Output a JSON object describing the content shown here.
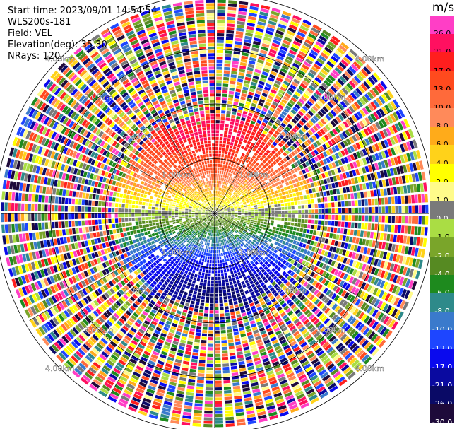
{
  "info": {
    "start_time": "Start time: 2023/09/01 14:54:54",
    "instrument": "WLS200s-181",
    "field": "Field: VEL",
    "elevation": "Elevation(deg): 35.30",
    "nrays": "NRays: 120"
  },
  "range_labels": [
    "1.00km",
    "2.00km",
    "3.00km",
    "4.00km"
  ],
  "legend": {
    "unit": "m/s",
    "entries": [
      {
        "label": "26.0",
        "color": "#ff3ec6"
      },
      {
        "label": "21.0",
        "color": "#ff1060"
      },
      {
        "label": "17.0",
        "color": "#ff1e1e"
      },
      {
        "label": "13.0",
        "color": "#ff4a1e"
      },
      {
        "label": "10.0",
        "color": "#ff6a3a"
      },
      {
        "label": "8.0",
        "color": "#ff8a5a"
      },
      {
        "label": "6.0",
        "color": "#ffab1a"
      },
      {
        "label": "4.0",
        "color": "#ffd21a"
      },
      {
        "label": "2.0",
        "color": "#ffff00"
      },
      {
        "label": "1.0",
        "color": "#fffb8a"
      },
      {
        "label": "0.0",
        "color": "#7a7a7a"
      },
      {
        "label": "-1.0",
        "color": "#aadd44"
      },
      {
        "label": "-2.0",
        "color": "#7aa52a"
      },
      {
        "label": "-4.0",
        "color": "#568a22"
      },
      {
        "label": "-6.0",
        "color": "#1e8a1e"
      },
      {
        "label": "-8.0",
        "color": "#2e8a8a"
      },
      {
        "label": "-10.0",
        "color": "#3a7acc"
      },
      {
        "label": "-13.0",
        "color": "#1e46ff"
      },
      {
        "label": "-17.0",
        "color": "#0a0aee"
      },
      {
        "label": "-21.0",
        "color": "#0a0aa0"
      },
      {
        "label": "-26.0",
        "color": "#0a0a66"
      },
      {
        "label": "-30.0",
        "color": "#1e0a3a"
      }
    ]
  }
}
